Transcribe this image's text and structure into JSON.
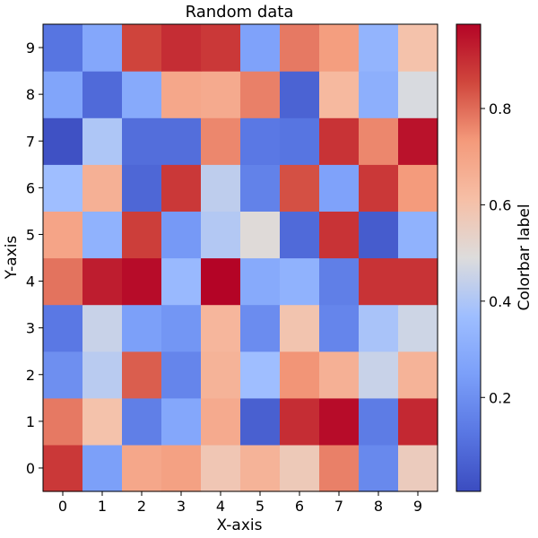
{
  "chart_data": {
    "type": "heatmap",
    "title": "Random data",
    "xlabel": "X-axis",
    "ylabel": "Y-axis",
    "x_ticks": [
      "0",
      "1",
      "2",
      "3",
      "4",
      "5",
      "6",
      "7",
      "8",
      "9"
    ],
    "y_ticks": [
      "0",
      "1",
      "2",
      "3",
      "4",
      "5",
      "6",
      "7",
      "8",
      "9"
    ],
    "colormap": "coolwarm",
    "colorbar": {
      "label": "Colorbar label",
      "range": [
        0.005,
        0.975
      ],
      "ticks": [
        0.2,
        0.4,
        0.6,
        0.8
      ],
      "tick_labels": [
        "0.2",
        "0.4",
        "0.6",
        "0.8"
      ]
    },
    "values_by_row_from_y0": [
      [
        0.88,
        0.25,
        0.69,
        0.71,
        0.58,
        0.65,
        0.57,
        0.77,
        0.18,
        0.56
      ],
      [
        0.78,
        0.6,
        0.15,
        0.28,
        0.68,
        0.06,
        0.9,
        0.96,
        0.14,
        0.91
      ],
      [
        0.2,
        0.42,
        0.82,
        0.17,
        0.65,
        0.37,
        0.74,
        0.66,
        0.45,
        0.65
      ],
      [
        0.13,
        0.45,
        0.25,
        0.22,
        0.64,
        0.19,
        0.59,
        0.17,
        0.39,
        0.46
      ],
      [
        0.79,
        0.93,
        0.96,
        0.35,
        0.98,
        0.29,
        0.32,
        0.15,
        0.89,
        0.89
      ],
      [
        0.7,
        0.32,
        0.87,
        0.23,
        0.41,
        0.5,
        0.09,
        0.89,
        0.05,
        0.32
      ],
      [
        0.37,
        0.66,
        0.08,
        0.88,
        0.43,
        0.16,
        0.84,
        0.26,
        0.88,
        0.73
      ],
      [
        0.02,
        0.4,
        0.1,
        0.1,
        0.76,
        0.13,
        0.12,
        0.89,
        0.76,
        0.95
      ],
      [
        0.27,
        0.09,
        0.29,
        0.69,
        0.68,
        0.77,
        0.07,
        0.63,
        0.31,
        0.48
      ],
      [
        0.12,
        0.28,
        0.86,
        0.9,
        0.88,
        0.26,
        0.78,
        0.72,
        0.33,
        0.6
      ]
    ]
  }
}
